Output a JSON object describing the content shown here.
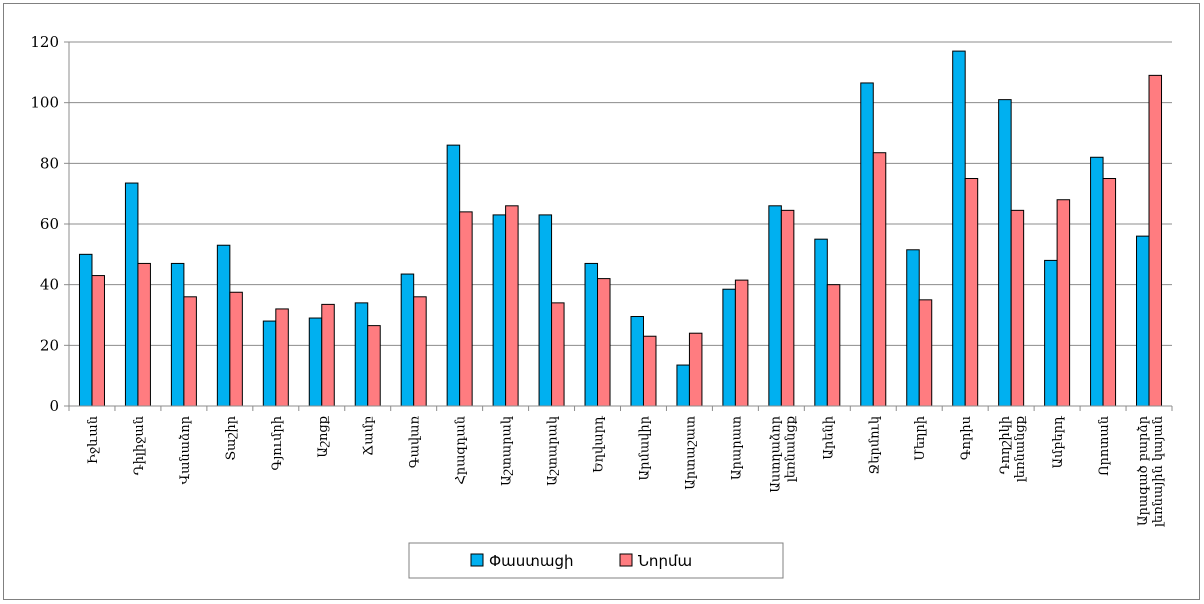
{
  "chart_data": {
    "type": "bar",
    "categories": [
      "Իջևան",
      "Դիլիջան",
      "Վանաձոր",
      "Տաշիր",
      "Գյումրի",
      "Աշոցք",
      "Ճամբ",
      "Գավառ",
      "Հրազդան",
      "Աշտարակ",
      "Աշտարակ",
      "Եղվարդ",
      "Արմավիր",
      "Արտաշատ",
      "Արարատ",
      "Աստղաձոր լեռնանցք",
      "Արենի",
      "Ջերմուկ",
      "Մեղրի",
      "Գորիս",
      "Դողշիկի լեռնանցք",
      "Ամբերդ",
      "Որոտան",
      "Արագած բարձր լեռնային կայան"
    ],
    "series": [
      {
        "name": "Փաստացի",
        "color": "#00b0f0",
        "values": [
          50,
          73.5,
          47,
          53,
          28,
          29,
          34,
          43.5,
          86,
          63,
          63,
          47,
          29.5,
          13.5,
          38.5,
          66,
          55,
          106.5,
          51.5,
          117,
          101,
          48,
          82,
          56
        ]
      },
      {
        "name": "Նորմա",
        "color": "#ff7c80",
        "values": [
          43,
          47,
          36,
          37.5,
          32,
          33.5,
          26.5,
          36,
          64,
          66,
          34,
          42,
          23,
          24,
          41.5,
          64.5,
          40,
          83.5,
          35,
          75,
          64.5,
          68,
          75,
          109
        ]
      }
    ],
    "yticks": [
      "0",
      "20",
      "40",
      "60",
      "80",
      "100",
      "120"
    ],
    "ylim": [
      0,
      120
    ],
    "grid": true,
    "legend": "bottom-center",
    "title": "",
    "xlabel": "",
    "ylabel": ""
  }
}
